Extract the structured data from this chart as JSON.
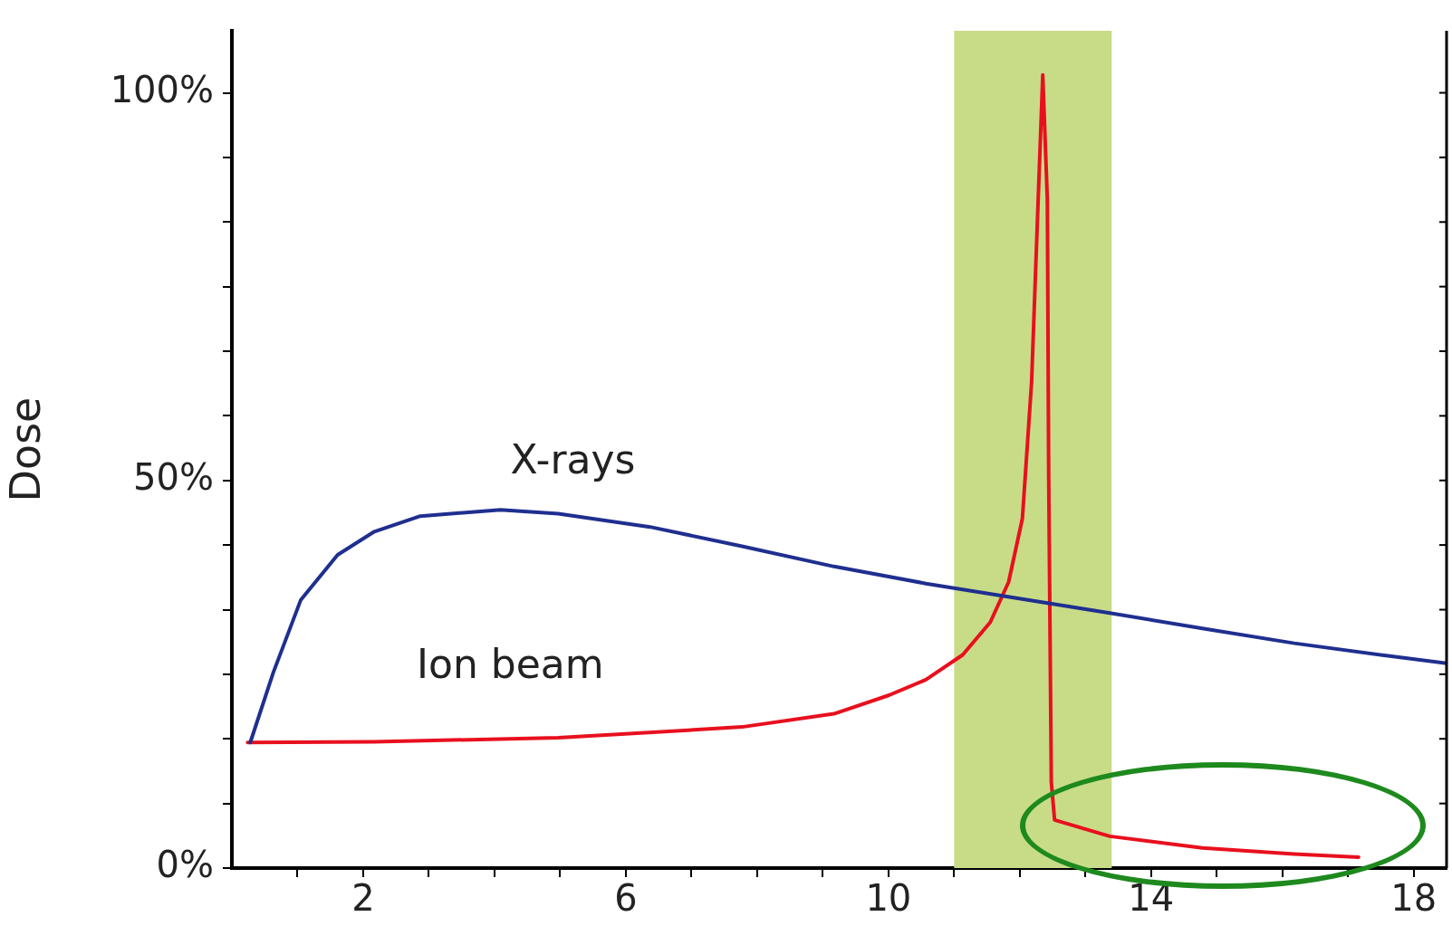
{
  "chart_data": {
    "type": "line",
    "ylabel": "Dose",
    "xlim": [
      0,
      18.5
    ],
    "xticks": [
      {
        "value": 1,
        "label": null
      },
      {
        "value": 2,
        "label": "2"
      },
      {
        "value": 3,
        "label": null
      },
      {
        "value": 4,
        "label": null
      },
      {
        "value": 5,
        "label": null
      },
      {
        "value": 6,
        "label": "6"
      },
      {
        "value": 7,
        "label": null
      },
      {
        "value": 8,
        "label": null
      },
      {
        "value": 9,
        "label": null
      },
      {
        "value": 10,
        "label": "10"
      },
      {
        "value": 11,
        "label": null
      },
      {
        "value": 12,
        "label": null
      },
      {
        "value": 13,
        "label": null
      },
      {
        "value": 14,
        "label": "14"
      },
      {
        "value": 15,
        "label": null
      },
      {
        "value": 16,
        "label": null
      },
      {
        "value": 17,
        "label": null
      },
      {
        "value": 18,
        "label": "18"
      }
    ],
    "ylim": [
      0,
      108
    ],
    "yticks": [
      {
        "value": 0,
        "label": "0%"
      },
      {
        "value": 8.33,
        "label": null
      },
      {
        "value": 16.67,
        "label": null
      },
      {
        "value": 25,
        "label": null
      },
      {
        "value": 33.33,
        "label": null
      },
      {
        "value": 41.67,
        "label": null
      },
      {
        "value": 50,
        "label": "50%"
      },
      {
        "value": 58.33,
        "label": null
      },
      {
        "value": 66.67,
        "label": null
      },
      {
        "value": 75,
        "label": null
      },
      {
        "value": 83.33,
        "label": null
      },
      {
        "value": 91.67,
        "label": null
      },
      {
        "value": 100,
        "label": "100%"
      }
    ],
    "grid": false,
    "legend": false,
    "marker": "none",
    "line_style": "solid",
    "bands": [
      {
        "axis": "x",
        "from": 11.0,
        "to": 13.4,
        "color": "#c8dc88"
      }
    ],
    "series": [
      {
        "name": "X-rays",
        "color": "#1f2f8f",
        "x": [
          0.28,
          0.63,
          1.05,
          1.61,
          2.17,
          2.87,
          4.09,
          4.97,
          6.37,
          7.77,
          9.17,
          10.57,
          11.97,
          13.37,
          14.78,
          16.18,
          17.58,
          18.5
        ],
        "values": [
          16.2,
          25.2,
          34.6,
          40.4,
          43.4,
          45.4,
          46.2,
          45.7,
          44.0,
          41.5,
          38.9,
          36.7,
          34.8,
          32.9,
          30.9,
          29.0,
          27.4,
          26.4
        ]
      },
      {
        "name": "Ion beam",
        "color": "#e8101e",
        "x": [
          0.24,
          2.17,
          4.97,
          7.77,
          9.17,
          10.01,
          10.57,
          11.13,
          11.55,
          11.83,
          12.04,
          12.18,
          12.28,
          12.35,
          12.42,
          12.44,
          12.48,
          12.53,
          13.37,
          14.78,
          16.18,
          17.16
        ],
        "values": [
          16.2,
          16.3,
          16.8,
          18.2,
          19.9,
          22.3,
          24.3,
          27.5,
          31.7,
          36.9,
          45.1,
          62.7,
          86.2,
          102.3,
          86.2,
          51.0,
          11.1,
          6.2,
          4.1,
          2.6,
          1.8,
          1.4
        ]
      }
    ]
  }
}
